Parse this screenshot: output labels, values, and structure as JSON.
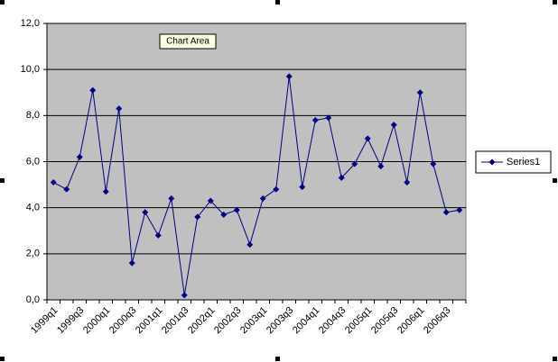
{
  "chart_data": {
    "type": "line",
    "tooltip": "Chart Area",
    "categories": [
      "1999q1",
      null,
      "1999q3",
      null,
      "2000q1",
      null,
      "2000q3",
      null,
      "2001q1",
      null,
      "2001q3",
      null,
      "2002q1",
      null,
      "2002q3",
      null,
      "2003q1",
      null,
      "2003q3",
      null,
      "2004q1",
      null,
      "2004q3",
      null,
      "2005q1",
      null,
      "2005q3",
      null,
      "2006q1",
      null,
      "2006q3",
      null
    ],
    "series": [
      {
        "name": "Series1",
        "color": "#000080",
        "values": [
          5.1,
          4.8,
          6.2,
          9.1,
          4.7,
          8.3,
          1.6,
          3.8,
          2.8,
          4.4,
          0.2,
          3.6,
          4.3,
          3.7,
          3.9,
          2.4,
          4.4,
          4.8,
          9.7,
          4.9,
          7.8,
          7.9,
          5.3,
          5.9,
          7.0,
          5.8,
          7.6,
          5.1,
          9.0,
          5.9,
          3.8,
          3.9
        ]
      }
    ],
    "ylim": [
      0,
      12
    ],
    "yticks": [
      {
        "value": 0,
        "label": "0,0"
      },
      {
        "value": 2,
        "label": "2,0"
      },
      {
        "value": 4,
        "label": "4,0"
      },
      {
        "value": 6,
        "label": "6,0"
      },
      {
        "value": 8,
        "label": "8,0"
      },
      {
        "value": 10,
        "label": "10,0"
      },
      {
        "value": 12,
        "label": "12,0"
      }
    ],
    "grid": true,
    "plot_background": "#c0c0c0",
    "legend": "right"
  }
}
